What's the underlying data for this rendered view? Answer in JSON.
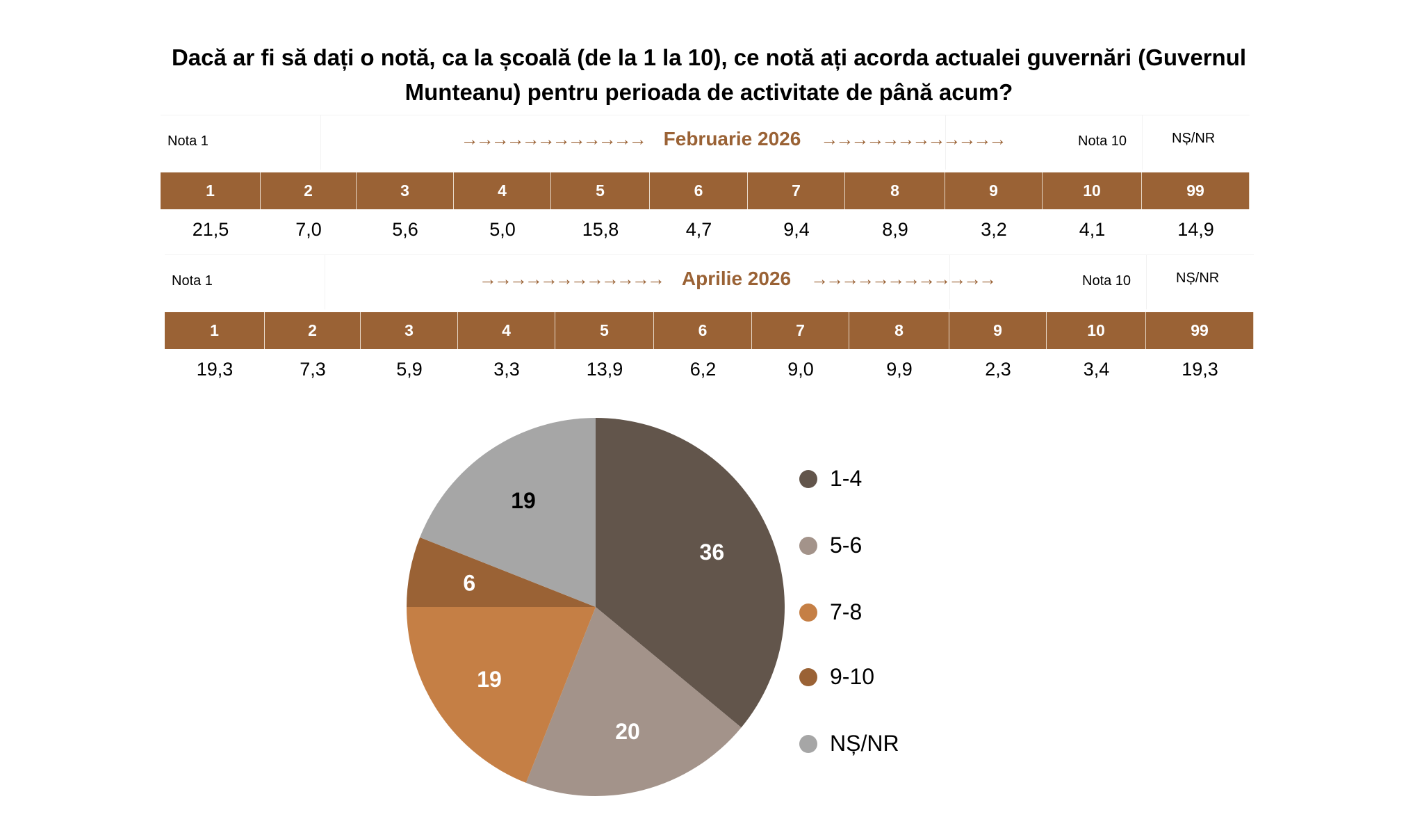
{
  "title": "Dacă ar fi să dați o notă, ca la școală (de la 1 la 10), ce notă ați acorda actualei guvernări (Guvernul Munteanu) pentru perioada de activitate de până acum?",
  "tables": [
    {
      "period": "Februarie 2026",
      "nota1_label": "Nota 1",
      "nota10_label": "Nota 10",
      "ns_label": "NȘ/NR",
      "arrows": "→→→→→→→→→→→→",
      "grades": [
        "1",
        "2",
        "3",
        "4",
        "5",
        "6",
        "7",
        "8",
        "9",
        "10",
        "99"
      ],
      "values": [
        "21,5",
        "7,0",
        "5,6",
        "5,0",
        "15,8",
        "4,7",
        "9,4",
        "8,9",
        "3,2",
        "4,1",
        "14,9"
      ]
    },
    {
      "period": "Aprilie 2026",
      "nota1_label": "Nota 1",
      "nota10_label": "Nota 10",
      "ns_label": "NȘ/NR",
      "arrows": "→→→→→→→→→→→→",
      "grades": [
        "1",
        "2",
        "3",
        "4",
        "5",
        "6",
        "7",
        "8",
        "9",
        "10",
        "99"
      ],
      "values": [
        "19,3",
        "7,3",
        "5,9",
        "3,3",
        "13,9",
        "6,2",
        "9,0",
        "9,9",
        "2,3",
        "3,4",
        "19,3"
      ]
    }
  ],
  "chart_data": {
    "type": "pie",
    "title": "",
    "legend_position": "right",
    "categories": [
      "1-4",
      "5-6",
      "7-8",
      "9-10",
      "NȘ/NR"
    ],
    "values": [
      36,
      20,
      19,
      6,
      19
    ],
    "colors": [
      "#62554B",
      "#A3938A",
      "#C57F45",
      "#9A6235",
      "#A6A6A6"
    ],
    "label_colors": [
      "#ffffff",
      "#ffffff",
      "#ffffff",
      "#ffffff",
      "#000000"
    ]
  }
}
